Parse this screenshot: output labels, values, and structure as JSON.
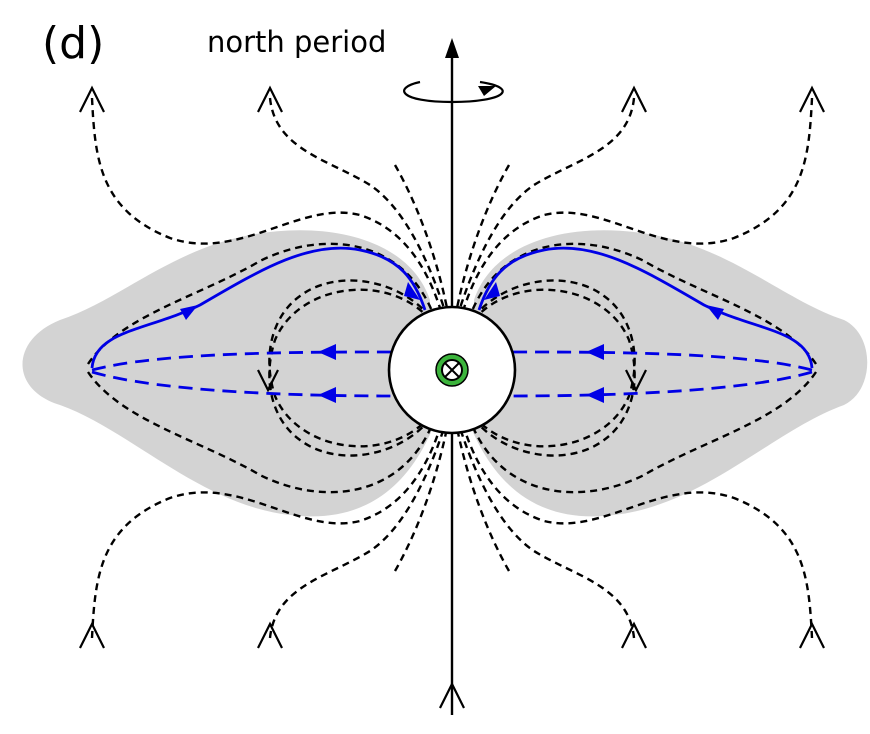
{
  "panel_label": "(d)",
  "title": "north period"
}
